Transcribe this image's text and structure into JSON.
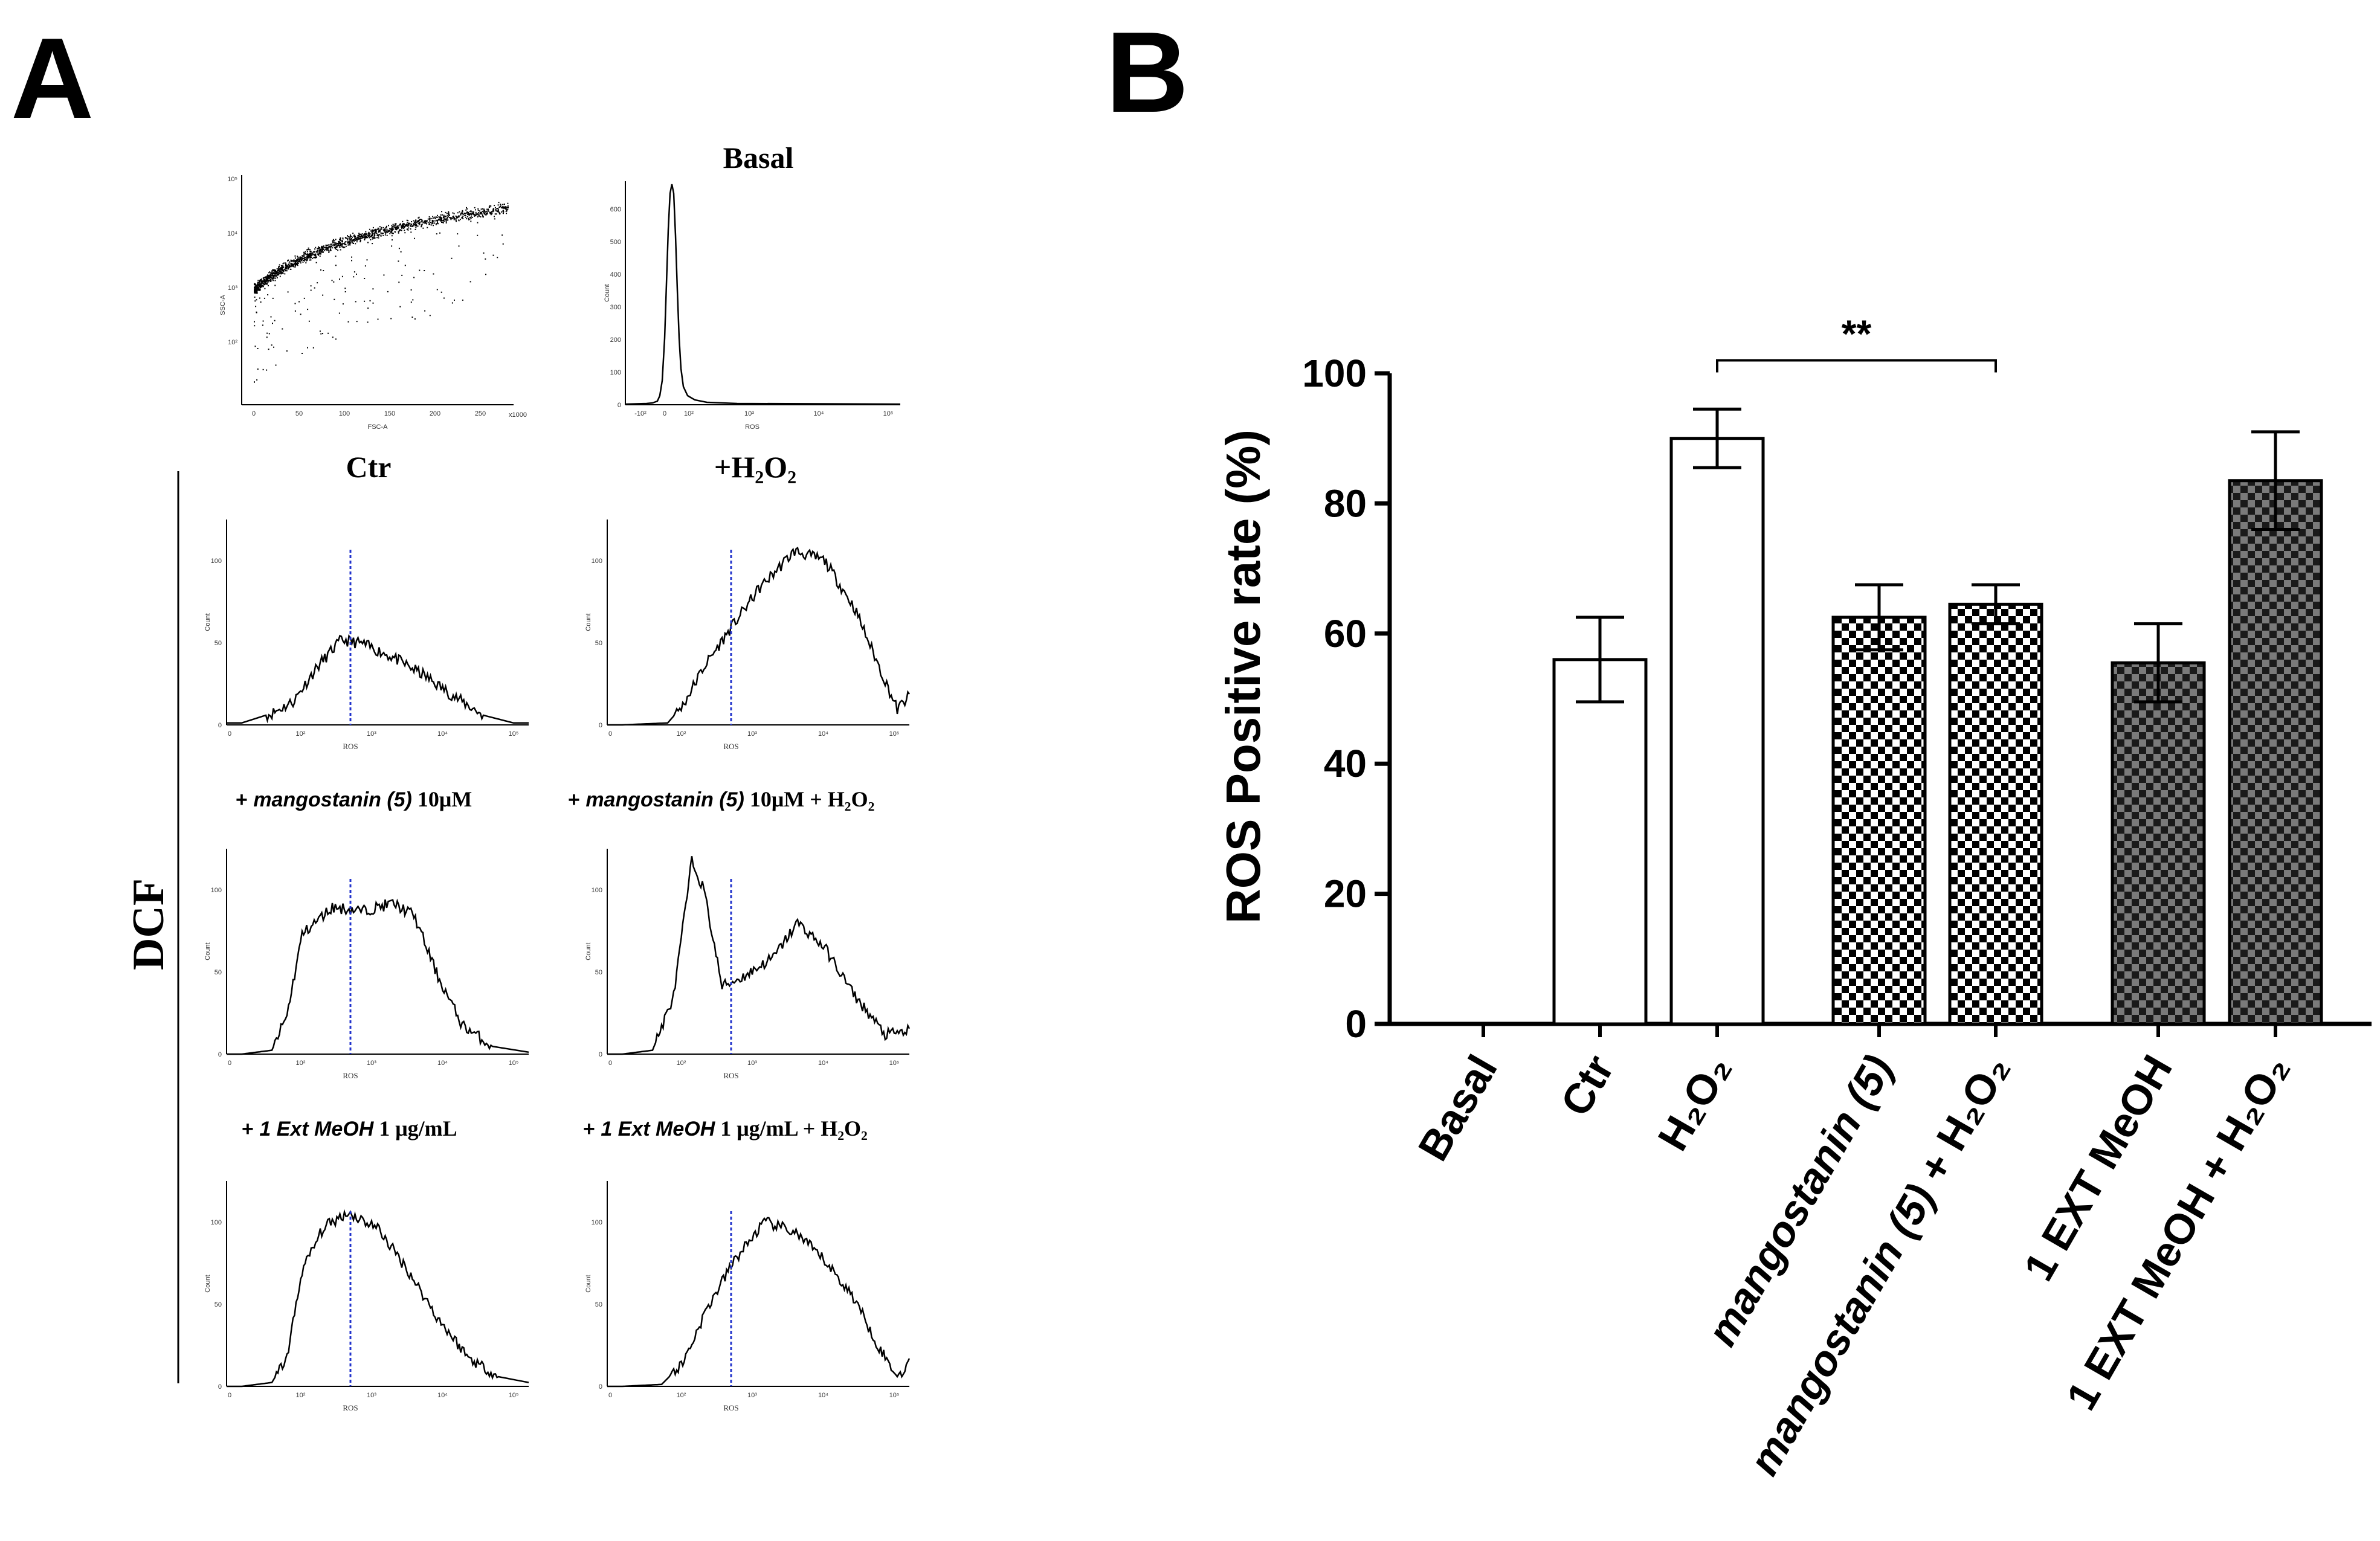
{
  "panel_a": {
    "letter": "A",
    "side_label": "DCF",
    "scatter": {
      "xlabel": "FSC-A",
      "ylabel": "SSC-A",
      "x_ticks": [
        "0",
        "50",
        "100",
        "150",
        "200",
        "250"
      ],
      "x_mult": "x1000",
      "y_ticks": [
        "10²",
        "10³",
        "10⁴",
        "10⁵"
      ]
    },
    "basal": {
      "title": "Basal",
      "xlabel": "ROS",
      "ylabel": "Count",
      "x_ticks": [
        "-10²",
        "0",
        "10²",
        "10³",
        "10⁴",
        "10⁵"
      ],
      "y_ticks": [
        "0",
        "100",
        "200",
        "300",
        "400",
        "500",
        "600"
      ]
    },
    "histograms": [
      {
        "id": "ctr",
        "title": "Ctr"
      },
      {
        "id": "h2o2",
        "title": "+H₂O₂"
      },
      {
        "id": "mango",
        "title_pre": "+ ",
        "title_italic": "mangostanin (5)",
        "title_conc": " 10μM",
        "title_post": ""
      },
      {
        "id": "mango-h2o2",
        "title_pre": "+ ",
        "title_italic": "mangostanin (5)",
        "title_conc": " 10μM",
        "title_post": " + H₂O₂"
      },
      {
        "id": "ext",
        "title_pre": "+ ",
        "title_italic": "1 Ext MeOH",
        "title_conc": " 1 μg/mL",
        "title_post": ""
      },
      {
        "id": "ext-h2o2",
        "title_pre": "+ ",
        "title_italic": "1 Ext MeOH",
        "title_conc": " 1 μg/mL",
        "title_post": "  + H₂O₂"
      }
    ],
    "hist_axes": {
      "xlabel": "ROS",
      "ylabel": "Count",
      "x_ticks": [
        "0",
        "10²",
        "10³",
        "10⁴",
        "10⁵"
      ],
      "y_ticks": [
        "0",
        "50",
        "100"
      ]
    }
  },
  "panel_b": {
    "letter": "B",
    "significance": "**"
  },
  "chart_data": {
    "type": "bar",
    "title": "",
    "xlabel": "",
    "ylabel": "ROS Positive rate (%)",
    "ylim": [
      0,
      100
    ],
    "y_ticks": [
      "0",
      "20",
      "40",
      "60",
      "80",
      "100"
    ],
    "categories": [
      "Basal",
      "Ctr",
      "H₂O₂",
      "mangostanin (5)",
      "mangostanin (5) + H₂O₂",
      "1 EXT MeOH",
      "1 EXT MeOH + H₂O₂"
    ],
    "values": [
      0,
      56,
      90,
      62.5,
      64.5,
      55.5,
      83.5
    ],
    "errors": [
      0,
      6.5,
      4.5,
      5,
      3,
      6,
      7.5
    ],
    "fills": [
      "white",
      "white",
      "white",
      "checker",
      "checker",
      "checker-dark",
      "checker-dark"
    ],
    "annotation": {
      "text": "**",
      "from": "H₂O₂",
      "to": "mangostanin (5) + H₂O₂"
    }
  }
}
